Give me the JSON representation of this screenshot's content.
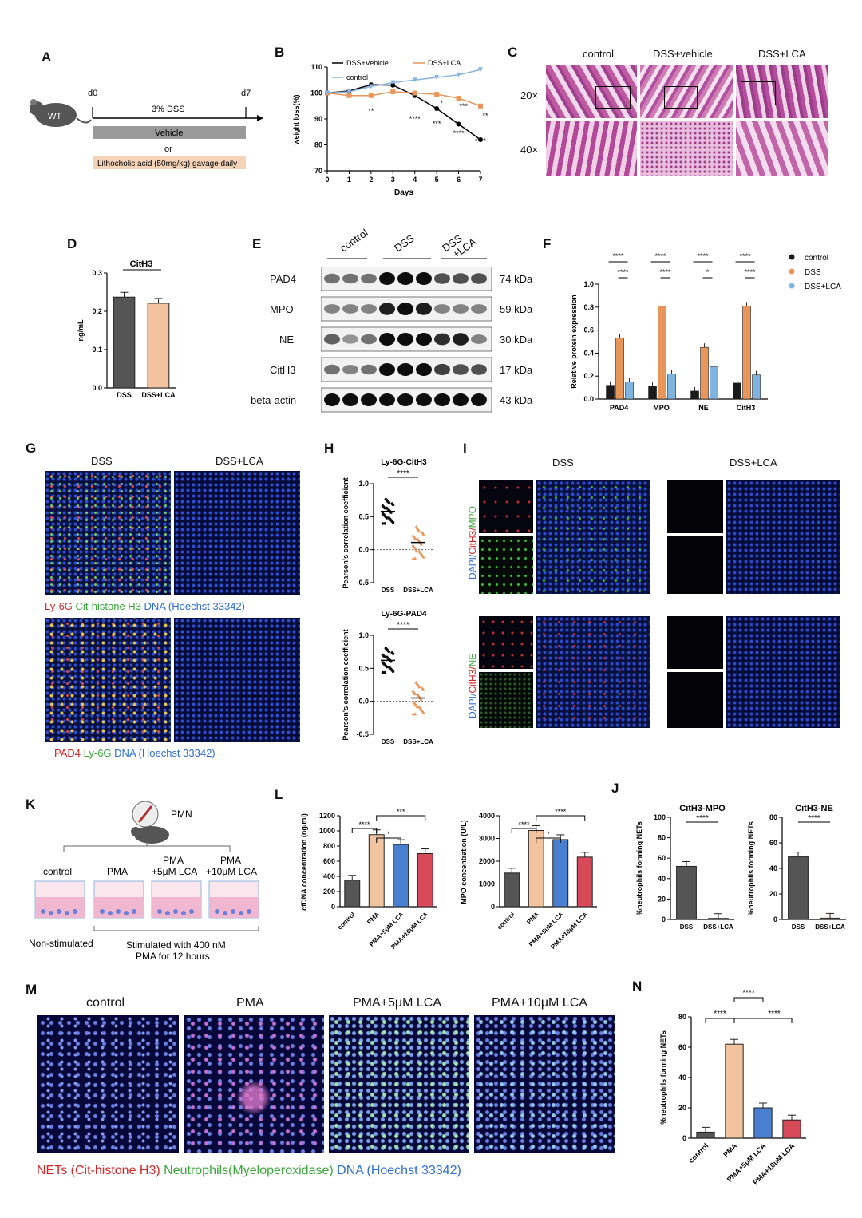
{
  "panels": {
    "A": "A",
    "B": "B",
    "C": "C",
    "D": "D",
    "E": "E",
    "F": "F",
    "G": "G",
    "H": "H",
    "I": "I",
    "J": "J",
    "K": "K",
    "L": "L",
    "M": "M",
    "N": "N"
  },
  "A": {
    "mouse": "WT",
    "d0": "d0",
    "d7": "d7",
    "dss": "3% DSS",
    "vehicle": "Vehicle",
    "or": "or",
    "lca": "Lithocholic acid (50mg/kg) gavage daily"
  },
  "C": {
    "cols": [
      "control",
      "DSS+vehicle",
      "DSS+LCA"
    ],
    "rows": [
      "20×",
      "40×"
    ]
  },
  "E": {
    "groups": [
      "control",
      "DSS",
      "DSS\n+LCA"
    ],
    "proteins": [
      "PAD4",
      "MPO",
      "NE",
      "CitH3",
      "beta-actin"
    ],
    "kda": [
      "74 kDa",
      "59 kDa",
      "30 kDa",
      "17 kDa",
      "43 kDa"
    ]
  },
  "G": {
    "cols": [
      "DSS",
      "DSS+LCA"
    ],
    "legend1": [
      "Ly-6G",
      "Cit-histone H3",
      "DNA (Hoechst 33342)"
    ],
    "legend2": [
      "PAD4",
      "Ly-6G",
      "DNA (Hoechst 33342)"
    ],
    "colors": {
      "red": "#d62728",
      "green": "#3aa83a",
      "blue": "#2f6fd6"
    }
  },
  "I": {
    "cols": [
      "DSS",
      "DSS+LCA"
    ],
    "label1": [
      "DAPI/",
      "CitH3/",
      "MPO"
    ],
    "label2": [
      "DAPI/",
      "CitH3/",
      "NE"
    ]
  },
  "K": {
    "pmn": "PMN",
    "groups": [
      "control",
      "PMA",
      "PMA\n+5μM LCA",
      "PMA\n+10μM LCA"
    ],
    "nonstim": "Non-stimulated",
    "stim": "Stimulated with 400 nM\nPMA for 12 hours"
  },
  "M": {
    "cols": [
      "control",
      "PMA",
      "PMA+5μM LCA",
      "PMA+10μM LCA"
    ],
    "legend": [
      "NETs (Cit-histone H3)",
      "Neutrophils(Myeloperoxidase)",
      "DNA (Hoechst 33342)"
    ]
  },
  "chart_data": [
    {
      "id": "B",
      "type": "line",
      "xlabel": "Days",
      "ylabel": "weight loss(%)",
      "xlim": [
        0,
        7
      ],
      "ylim": [
        70,
        110
      ],
      "xticks": [
        0,
        1,
        2,
        3,
        4,
        5,
        6,
        7
      ],
      "yticks": [
        70,
        80,
        90,
        100,
        110
      ],
      "legend_position": "top",
      "series": [
        {
          "name": "DSS+Vehicle",
          "color": "#000000",
          "marker": "circle",
          "x": [
            0,
            1,
            2,
            3,
            4,
            5,
            6,
            7
          ],
          "y": [
            100,
            100.8,
            103.2,
            103,
            99,
            94,
            88,
            82
          ]
        },
        {
          "name": "DSS+LCA",
          "color": "#e8965a",
          "marker": "square",
          "x": [
            0,
            1,
            2,
            3,
            4,
            5,
            6,
            7
          ],
          "y": [
            100,
            99,
            99,
            100.5,
            100,
            99.5,
            98,
            95
          ]
        },
        {
          "name": "control",
          "color": "#8ab4e0",
          "marker": "triangle-down",
          "x": [
            0,
            1,
            2,
            3,
            4,
            5,
            6,
            7
          ],
          "y": [
            100,
            100.5,
            102.5,
            104,
            105,
            106,
            107,
            109
          ]
        }
      ],
      "annotations": [
        {
          "x": 2,
          "text": "**"
        },
        {
          "x": 4,
          "text": "****"
        },
        {
          "x": 5,
          "text": "***"
        },
        {
          "x": 5,
          "text": "*"
        },
        {
          "x": 6,
          "text": "****"
        },
        {
          "x": 6,
          "text": "***"
        },
        {
          "x": 7,
          "text": "****"
        },
        {
          "x": 7,
          "text": "**"
        }
      ]
    },
    {
      "id": "D",
      "type": "bar",
      "title": "CitH3",
      "ylabel": "ng/mL",
      "ylim": [
        0,
        0.3
      ],
      "yticks": [
        "0.0",
        "0.1",
        "0.2",
        "0.3"
      ],
      "categories": [
        "DSS",
        "DSS+LCA"
      ],
      "values": [
        0.237,
        0.221
      ],
      "colors": [
        "#555555",
        "#f2c39f"
      ],
      "annotations": [
        "*"
      ]
    },
    {
      "id": "F",
      "type": "bar",
      "ylabel": "Relative protein expression",
      "ylim": [
        0,
        1.0
      ],
      "yticks": [
        "0.0",
        "0.2",
        "0.4",
        "0.6",
        "0.8",
        "1.0"
      ],
      "categories": [
        "PAD4",
        "MPO",
        "NE",
        "CitH3"
      ],
      "legend_position": "right",
      "series": [
        {
          "name": "control",
          "color": "#1a1a1a",
          "values": [
            0.12,
            0.11,
            0.07,
            0.14
          ]
        },
        {
          "name": "DSS",
          "color": "#e8965a",
          "values": [
            0.53,
            0.81,
            0.45,
            0.81
          ]
        },
        {
          "name": "DSS+LCA",
          "color": "#7fb3e0",
          "values": [
            0.15,
            0.22,
            0.28,
            0.21
          ]
        }
      ],
      "annotations": [
        "****",
        "****",
        "****",
        "****",
        "****",
        "*",
        "****",
        "****"
      ]
    },
    {
      "id": "H1",
      "type": "scatter",
      "title": "Ly-6G-CitH3",
      "ylabel": "Pearson's correlation coefficient",
      "ylim": [
        -0.5,
        1.0
      ],
      "yticks": [
        "-0.5",
        "0.0",
        "0.5",
        "1.0"
      ],
      "categories": [
        "DSS",
        "DSS+LCA"
      ],
      "means": [
        0.58,
        0.11
      ],
      "annotations": [
        "****"
      ]
    },
    {
      "id": "H2",
      "type": "scatter",
      "title": "Ly-6G-PAD4",
      "ylabel": "Pearson's correlation coefficient",
      "ylim": [
        -0.5,
        1.0
      ],
      "yticks": [
        "-0.5",
        "0.0",
        "0.5",
        "1.0"
      ],
      "categories": [
        "DSS",
        "DSS+LCA"
      ],
      "means": [
        0.62,
        0.05
      ],
      "annotations": [
        "****"
      ]
    },
    {
      "id": "L1",
      "type": "bar",
      "ylabel": "cfDNA concentration (ng/ml)",
      "ylim": [
        0,
        1200
      ],
      "yticks": [
        "0",
        "200",
        "400",
        "600",
        "800",
        "1000",
        "1200"
      ],
      "categories": [
        "control",
        "PMA",
        "PMA+5μM LCA",
        "PMA+10μM LCA"
      ],
      "values": [
        350,
        950,
        820,
        700
      ],
      "colors": [
        "#555555",
        "#f2c39f",
        "#4a7fd0",
        "#d84a5a"
      ],
      "annotations": [
        "****",
        "*",
        "***"
      ]
    },
    {
      "id": "L2",
      "type": "bar",
      "ylabel": "MPO concentration (U/L)",
      "ylim": [
        0,
        4000
      ],
      "yticks": [
        "0",
        "1000",
        "2000",
        "3000",
        "4000"
      ],
      "categories": [
        "control",
        "PMA",
        "PMA+5μM LCA",
        "PMA+10μM LCA"
      ],
      "values": [
        1480,
        3350,
        2950,
        2180
      ],
      "colors": [
        "#555555",
        "#f2c39f",
        "#4a7fd0",
        "#d84a5a"
      ],
      "annotations": [
        "****",
        "*",
        "****"
      ]
    },
    {
      "id": "J1",
      "type": "bar",
      "title": "CitH3-MPO",
      "ylabel": "%neutrophils forming NETs",
      "ylim": [
        0,
        100
      ],
      "yticks": [
        "0",
        "20",
        "40",
        "60",
        "80",
        "100"
      ],
      "categories": [
        "DSS",
        "DSS+LCA"
      ],
      "values": [
        52,
        1
      ],
      "colors": [
        "#555555",
        "#e8965a"
      ],
      "annotations": [
        "****"
      ]
    },
    {
      "id": "J2",
      "type": "bar",
      "title": "CitH3-NE",
      "ylabel": "%neutrophils forming NETs",
      "ylim": [
        0,
        80
      ],
      "yticks": [
        "0",
        "20",
        "40",
        "60",
        "80"
      ],
      "categories": [
        "DSS",
        "DSS+LCA"
      ],
      "values": [
        49,
        1
      ],
      "colors": [
        "#555555",
        "#e8965a"
      ],
      "annotations": [
        "****"
      ]
    },
    {
      "id": "N",
      "type": "bar",
      "ylabel": "%neutrophils forming NETs",
      "ylim": [
        0,
        80
      ],
      "yticks": [
        "0",
        "20",
        "40",
        "60",
        "80"
      ],
      "categories": [
        "control",
        "PMA",
        "PMA+5μM LCA",
        "PMA+10μM LCA"
      ],
      "values": [
        4,
        62,
        20,
        12
      ],
      "colors": [
        "#555555",
        "#f2c39f",
        "#4a7fd0",
        "#d84a5a"
      ],
      "annotations": [
        "****",
        "****",
        "****"
      ]
    }
  ]
}
